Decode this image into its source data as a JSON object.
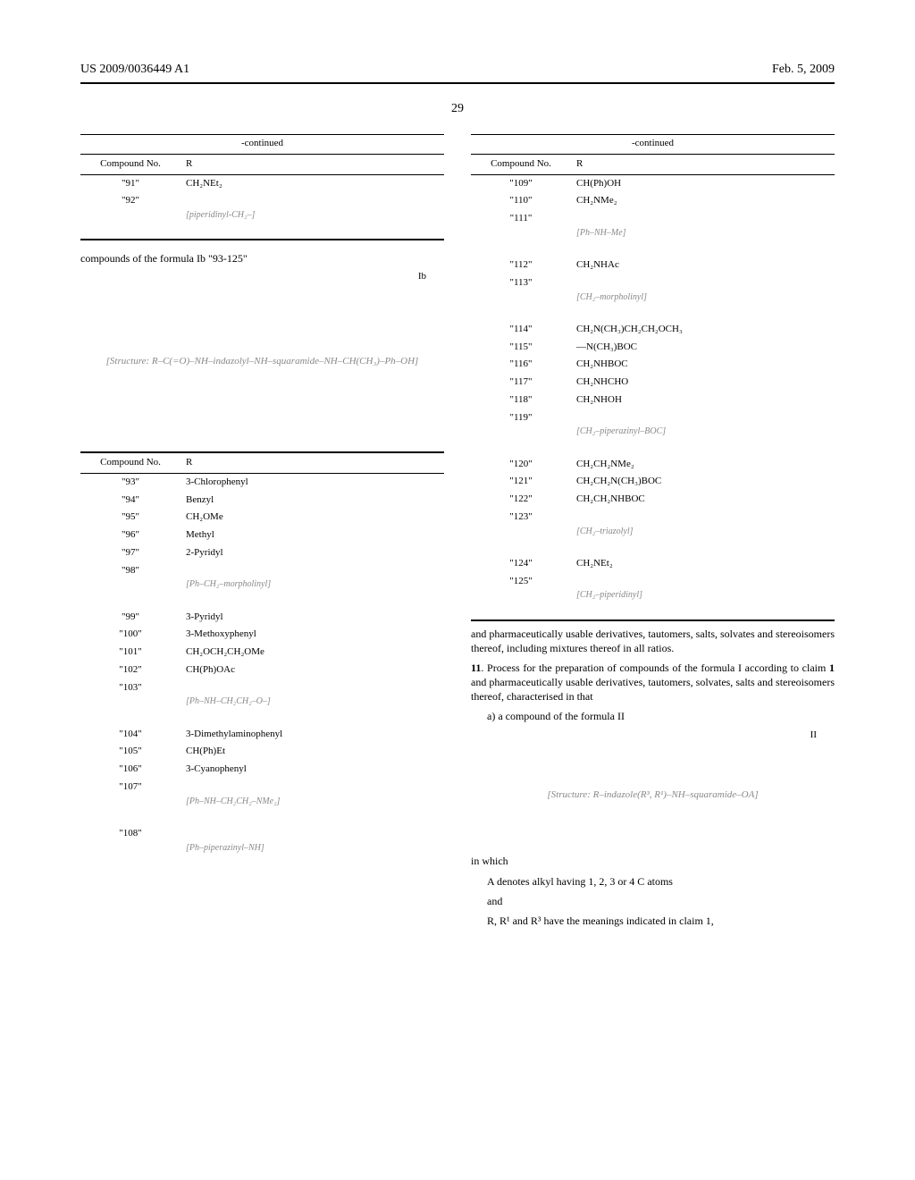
{
  "header": {
    "pub_no": "US 2009/0036449 A1",
    "date": "Feb. 5, 2009",
    "page_no": "29"
  },
  "left": {
    "table1": {
      "cont": "-continued",
      "col1": "Compound No.",
      "col2": "R",
      "rows": [
        {
          "no": "\"91\"",
          "r": "CH₂NEt₂",
          "struct": false
        },
        {
          "no": "\"92\"",
          "r": "[piperidinyl-CH₂–]",
          "struct": true
        }
      ]
    },
    "caption_93_125": "compounds of the formula Ib \"93-125\"",
    "formula_Ib_label": "Ib",
    "formula_Ib_alt": "[Structure: R–C(=O)–NH–indazolyl–NH–squaramide–NH–CH(CH₃)–Ph–OH]",
    "table2": {
      "col1": "Compound No.",
      "col2": "R",
      "rows": [
        {
          "no": "\"93\"",
          "r": "3-Chlorophenyl",
          "struct": false
        },
        {
          "no": "\"94\"",
          "r": "Benzyl",
          "struct": false
        },
        {
          "no": "\"95\"",
          "r": "CH₂OMe",
          "struct": false
        },
        {
          "no": "\"96\"",
          "r": "Methyl",
          "struct": false
        },
        {
          "no": "\"97\"",
          "r": "2-Pyridyl",
          "struct": false
        },
        {
          "no": "\"98\"",
          "r": "[Ph–CH₂–morpholinyl]",
          "struct": true
        },
        {
          "no": "\"99\"",
          "r": "3-Pyridyl",
          "struct": false
        },
        {
          "no": "\"100\"",
          "r": "3-Methoxyphenyl",
          "struct": false
        },
        {
          "no": "\"101\"",
          "r": "CH₂OCH₂CH₂OMe",
          "struct": false
        },
        {
          "no": "\"102\"",
          "r": "CH(Ph)OAc",
          "struct": false
        },
        {
          "no": "\"103\"",
          "r": "[Ph–NH–CH₂CH₂–O–]",
          "struct": true
        },
        {
          "no": "\"104\"",
          "r": "3-Dimethylaminophenyl",
          "struct": false
        },
        {
          "no": "\"105\"",
          "r": "CH(Ph)Et",
          "struct": false
        },
        {
          "no": "\"106\"",
          "r": "3-Cyanophenyl",
          "struct": false
        },
        {
          "no": "\"107\"",
          "r": "[Ph–NH–CH₂CH₂–NMe₂]",
          "struct": true
        },
        {
          "no": "\"108\"",
          "r": "[Ph–piperazinyl–NH]",
          "struct": true
        }
      ]
    }
  },
  "right": {
    "table": {
      "cont": "-continued",
      "col1": "Compound No.",
      "col2": "R",
      "rows": [
        {
          "no": "\"109\"",
          "r": "CH(Ph)OH",
          "struct": false
        },
        {
          "no": "\"110\"",
          "r": "CH₂NMe₂",
          "struct": false
        },
        {
          "no": "\"111\"",
          "r": "[Ph–NH–Me]",
          "struct": true
        },
        {
          "no": "\"112\"",
          "r": "CH₂NHAc",
          "struct": false
        },
        {
          "no": "\"113\"",
          "r": "[CH₂–morpholinyl]",
          "struct": true
        },
        {
          "no": "\"114\"",
          "r": "CH₂N(CH₃)CH₂CH₂OCH₃",
          "struct": false
        },
        {
          "no": "\"115\"",
          "r": "—N(CH₃)BOC",
          "struct": false
        },
        {
          "no": "\"116\"",
          "r": "CH₂NHBOC",
          "struct": false
        },
        {
          "no": "\"117\"",
          "r": "CH₂NHCHO",
          "struct": false
        },
        {
          "no": "\"118\"",
          "r": "CH₂NHOH",
          "struct": false
        },
        {
          "no": "\"119\"",
          "r": "[CH₂–piperazinyl–BOC]",
          "struct": true
        },
        {
          "no": "\"120\"",
          "r": "CH₂CH₂NMe₂",
          "struct": false
        },
        {
          "no": "\"121\"",
          "r": "CH₂CH₂N(CH₃)BOC",
          "struct": false
        },
        {
          "no": "\"122\"",
          "r": "CH₂CH₂NHBOC",
          "struct": false
        },
        {
          "no": "\"123\"",
          "r": "[CH₂–triazolyl]",
          "struct": true
        },
        {
          "no": "\"124\"",
          "r": "CH₂NEt₂",
          "struct": false
        },
        {
          "no": "\"125\"",
          "r": "[CH₂–piperidinyl]",
          "struct": true
        }
      ]
    },
    "para1": "and pharmaceutically usable derivatives, tautomers, salts, solvates and stereoisomers thereof, including mixtures thereof in all ratios.",
    "claim11_lead": "11",
    "claim11_body": ". Process for the preparation of compounds of the formula I according to claim ",
    "claim11_ref": "1",
    "claim11_tail": " and pharmaceutically usable derivatives, tautomers, solvates, salts and stereoisomers thereof, characterised in that",
    "sub_a": "a) a compound of the formula II",
    "formula_II_label": "II",
    "formula_II_alt": "[Structure: R–indazole(R³, R¹)–NH–squaramide–OA]",
    "inwhich": "in which",
    "A_def": "A denotes alkyl having 1, 2, 3 or 4 C atoms",
    "and": "and",
    "RR1R3": "R, R¹ and R³ have the meanings indicated in claim 1,"
  }
}
